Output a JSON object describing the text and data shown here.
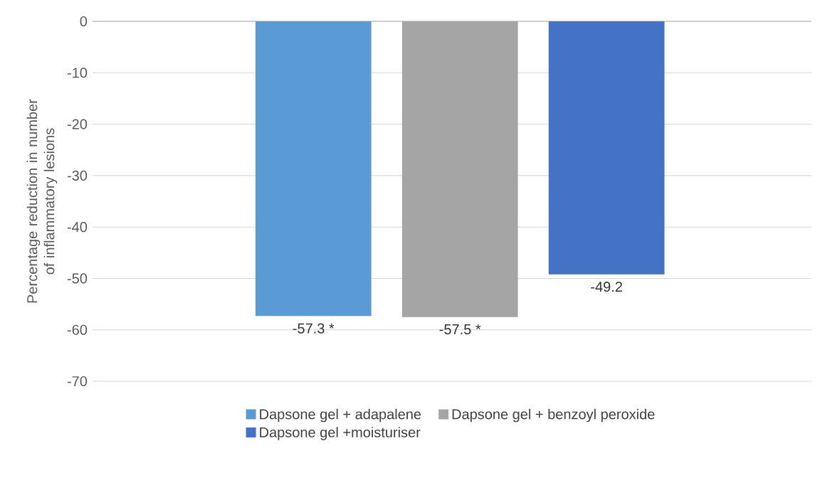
{
  "chart_data": {
    "type": "bar",
    "ylabel": "Percentage reduction in number of inflammatory lesions",
    "categories": [
      null
    ],
    "series": [
      {
        "name": "Dapsone gel + adapalene",
        "color": "#5b9bd5",
        "values": [
          -57.3
        ],
        "value_labels": [
          "-57.3 *"
        ]
      },
      {
        "name": "Dapsone gel + benzoyl peroxide",
        "color": "#a5a5a5",
        "values": [
          -57.5
        ],
        "value_labels": [
          "-57.5 *"
        ]
      },
      {
        "name": "Dapsone gel +moisturiser",
        "color": "#4472c4",
        "values": [
          -49.2
        ],
        "value_labels": [
          "-49.2"
        ]
      }
    ],
    "ylim": [
      -70,
      0
    ],
    "yticks": [
      -70,
      -60,
      -50,
      -40,
      -30,
      -20,
      -10,
      0
    ],
    "grid": "y",
    "legend": "bottom"
  }
}
